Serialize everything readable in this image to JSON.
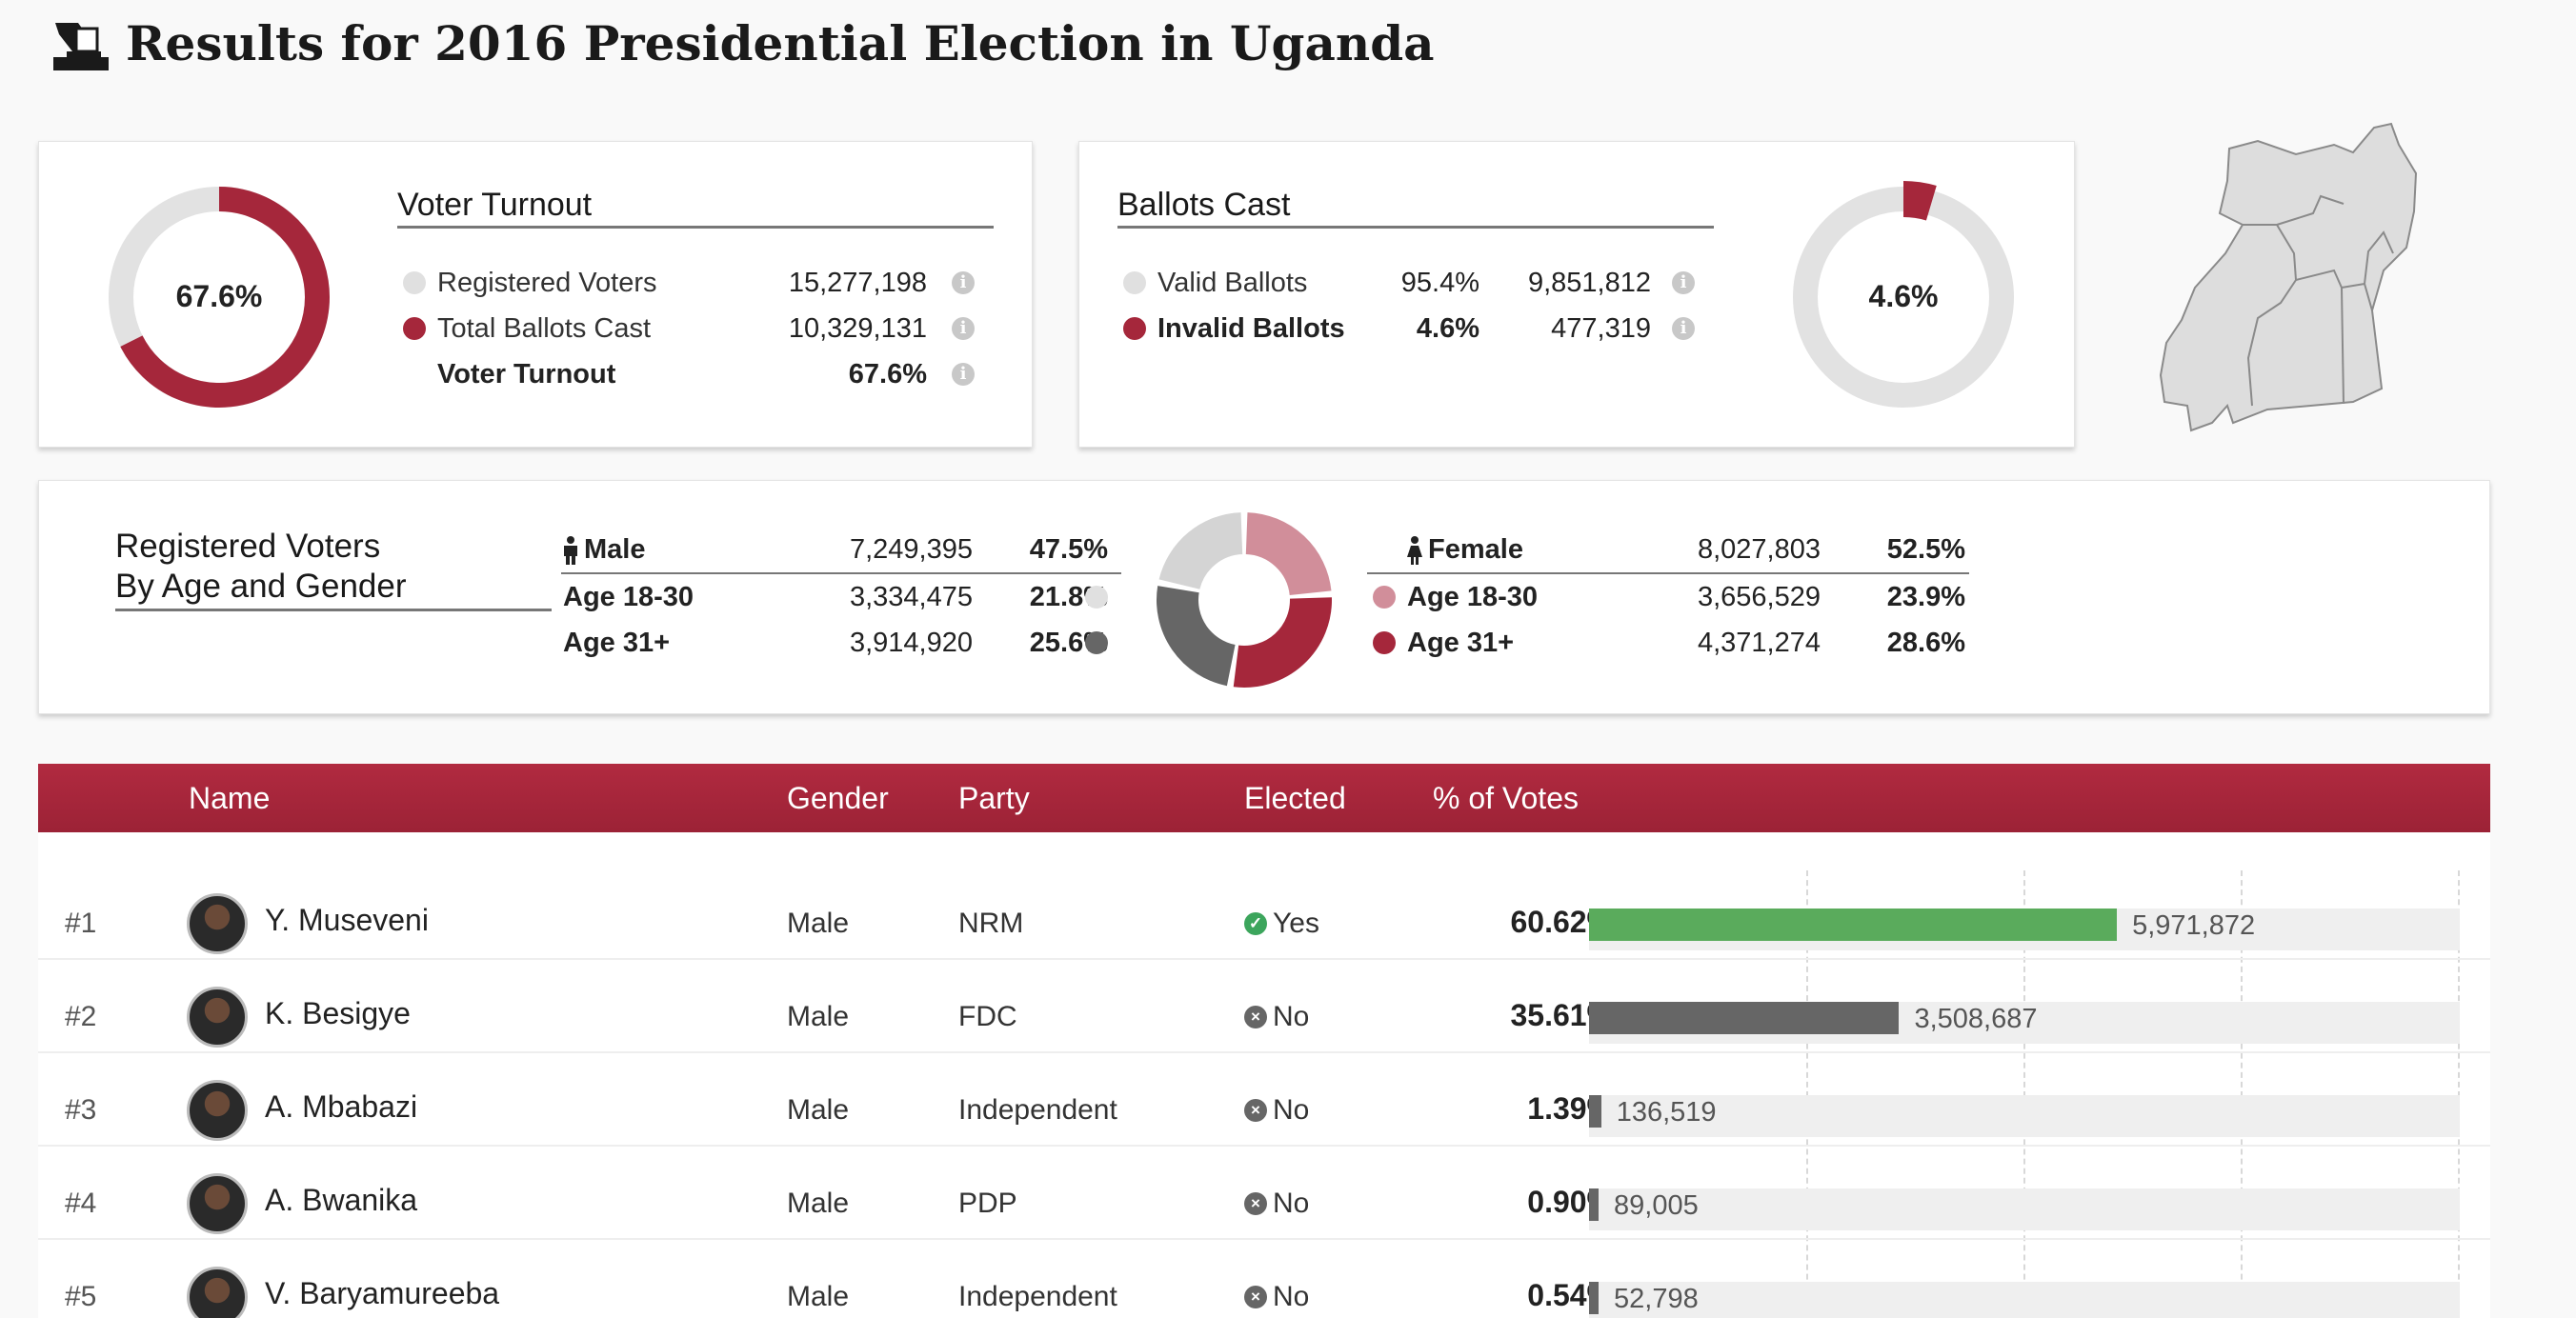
{
  "title": "Results for 2016 Presidential Election in Uganda",
  "colors": {
    "accent": "#a5273b",
    "winner": "#5aab5c",
    "loser": "#666666",
    "grey": "#e0e0e0",
    "pink": "#d18e9a"
  },
  "turnout": {
    "title": "Voter Turnout",
    "donut_label": "67.6%",
    "donut_fraction": 0.676,
    "rows": [
      {
        "label": "Registered Voters",
        "value": "15,277,198"
      },
      {
        "label": "Total Ballots Cast",
        "value": "10,329,131"
      },
      {
        "label": "Voter Turnout",
        "value": "67.6%"
      }
    ]
  },
  "ballots": {
    "title": "Ballots Cast",
    "donut_label": "4.6%",
    "donut_fraction": 0.046,
    "rows": [
      {
        "label": "Valid Ballots",
        "pct": "95.4%",
        "value": "9,851,812"
      },
      {
        "label": "Invalid Ballots",
        "pct": "4.6%",
        "value": "477,319"
      }
    ]
  },
  "demographics": {
    "title_line1": "Registered Voters",
    "title_line2": "By Age and Gender",
    "male": {
      "label": "Male",
      "total": "7,249,395",
      "pct": "47.5%",
      "rows": [
        {
          "label": "Age 18-30",
          "value": "3,334,475",
          "pct": "21.8%"
        },
        {
          "label": "Age 31+",
          "value": "3,914,920",
          "pct": "25.6%"
        }
      ]
    },
    "female": {
      "label": "Female",
      "total": "8,027,803",
      "pct": "52.5%",
      "rows": [
        {
          "label": "Age 18-30",
          "value": "3,656,529",
          "pct": "23.9%"
        },
        {
          "label": "Age 31+",
          "value": "4,371,274",
          "pct": "28.6%"
        }
      ]
    },
    "pie_values": [
      21.8,
      25.6,
      23.9,
      28.6
    ]
  },
  "table": {
    "headers": {
      "name": "Name",
      "gender": "Gender",
      "party": "Party",
      "elected": "Elected",
      "votes": "% of Votes"
    },
    "max_pct": 100,
    "candidates": [
      {
        "rank": "#1",
        "name": "Y. Museveni",
        "gender": "Male",
        "party": "NRM",
        "elected": "Yes",
        "pct_label": "60.62%",
        "pct": 60.62,
        "votes": "5,971,872",
        "winner": true
      },
      {
        "rank": "#2",
        "name": "K. Besigye",
        "gender": "Male",
        "party": "FDC",
        "elected": "No",
        "pct_label": "35.61%",
        "pct": 35.61,
        "votes": "3,508,687",
        "winner": false
      },
      {
        "rank": "#3",
        "name": "A. Mbabazi",
        "gender": "Male",
        "party": "Independent",
        "elected": "No",
        "pct_label": "1.39%",
        "pct": 1.39,
        "votes": "136,519",
        "winner": false
      },
      {
        "rank": "#4",
        "name": "A. Bwanika",
        "gender": "Male",
        "party": "PDP",
        "elected": "No",
        "pct_label": "0.90%",
        "pct": 0.9,
        "votes": "89,005",
        "winner": false
      },
      {
        "rank": "#5",
        "name": "V. Baryamureeba",
        "gender": "Male",
        "party": "Independent",
        "elected": "No",
        "pct_label": "0.54%",
        "pct": 0.54,
        "votes": "52,798",
        "winner": false
      }
    ]
  }
}
